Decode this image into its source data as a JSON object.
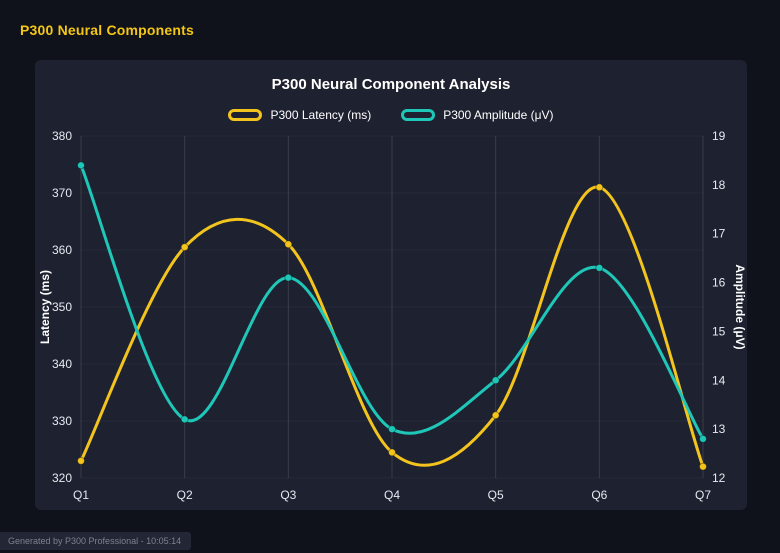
{
  "page": {
    "title": "P300 Neural Components",
    "footer": "Generated by P300 Professional - 10:05:14"
  },
  "chart_data": {
    "type": "line",
    "title": "P300 Neural Component Analysis",
    "categories": [
      "Q1",
      "Q2",
      "Q3",
      "Q4",
      "Q5",
      "Q6",
      "Q7"
    ],
    "series": [
      {
        "name": "P300 Latency (ms)",
        "axis": "left",
        "color": "#f2c41d",
        "values": [
          323,
          360.5,
          361,
          324.5,
          331,
          371,
          322
        ]
      },
      {
        "name": "P300 Amplitude (μV)",
        "axis": "right",
        "color": "#1fc7b8",
        "values": [
          18.4,
          13.2,
          16.1,
          13.0,
          14.0,
          16.3,
          12.8
        ]
      }
    ],
    "left_axis": {
      "label": "Latency (ms)",
      "min": 320,
      "max": 380,
      "step": 10
    },
    "right_axis": {
      "label": "Amplitude (μV)",
      "min": 12,
      "max": 19,
      "step": 1
    },
    "legend_position": "top",
    "grid": "vertical",
    "curve": "smooth"
  }
}
